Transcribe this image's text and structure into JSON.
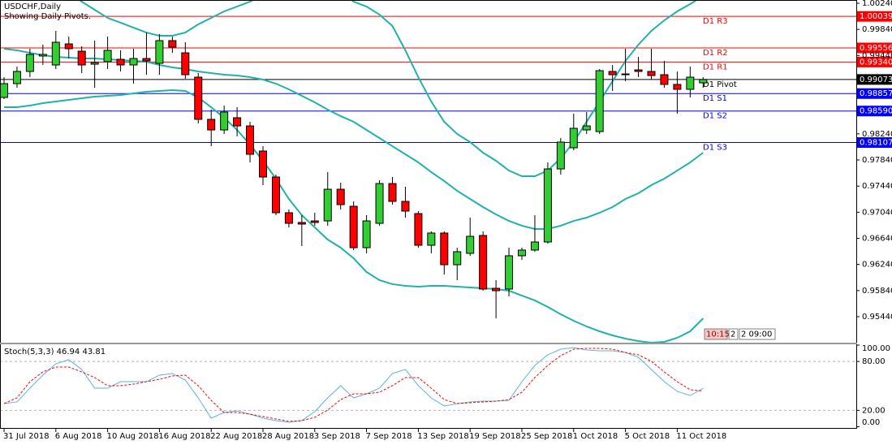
{
  "chart_data": [
    {
      "type": "candlestick",
      "title": "USDCHF,Daily",
      "subtitle": "Showing Daily Pivots.",
      "categories": [
        "31 Jul 2018",
        null,
        null,
        null,
        "6 Aug 2018",
        null,
        null,
        null,
        "10 Aug 2018",
        null,
        null,
        null,
        "16 Aug 2018",
        null,
        null,
        null,
        "22 Aug 2018",
        null,
        null,
        null,
        "28 Aug 2018",
        null,
        null,
        null,
        "3 Sep 2018",
        null,
        null,
        null,
        "7 Sep 2018",
        null,
        null,
        null,
        "13 Sep 2018",
        null,
        null,
        null,
        "19 Sep 2018",
        null,
        null,
        null,
        "25 Sep 2018",
        null,
        null,
        null,
        "1 Oct 2018",
        null,
        null,
        null,
        "5 Oct 2018",
        null,
        null,
        null,
        "11 Oct 2018",
        null,
        null
      ],
      "open": [
        0.98798,
        0.99009,
        0.99196,
        0.99432,
        0.99295,
        0.99618,
        0.99506,
        0.99307,
        0.99345,
        0.99382,
        0.99295,
        0.99394,
        0.9932,
        0.99668,
        0.99481,
        0.99108,
        0.98462,
        0.983,
        0.98487,
        0.98362,
        0.97977,
        0.97579,
        0.97032,
        0.96883,
        0.96907,
        0.96907,
        0.97392,
        0.97131,
        0.96497,
        0.9687,
        0.97479,
        0.97206,
        0.97019,
        0.96534,
        0.96721,
        0.96236,
        0.9641,
        0.96684,
        0.95875,
        0.95863,
        0.96373,
        0.9646,
        0.96584,
        0.97703,
        0.98027,
        0.983,
        0.98275,
        0.99196,
        0.99146,
        0.9922,
        0.99196,
        0.99146,
        0.98997,
        0.98922,
        0.99021
      ],
      "high": [
        0.99108,
        0.9927,
        0.99544,
        0.99606,
        0.99817,
        0.9973,
        0.99581,
        0.99668,
        0.9973,
        0.99519,
        0.99544,
        0.99792,
        0.99768,
        0.9973,
        0.99643,
        0.99171,
        0.98611,
        0.98673,
        0.98648,
        0.98425,
        0.98051,
        0.97616,
        0.97082,
        0.96995,
        0.97032,
        0.97654,
        0.97492,
        0.97206,
        0.96995,
        0.97529,
        0.97579,
        0.9743,
        0.97057,
        0.96746,
        0.96746,
        0.96497,
        0.96957,
        0.96746,
        0.96,
        0.96497,
        0.96497,
        0.96995,
        0.97803,
        0.98176,
        0.98549,
        0.98574,
        0.99233,
        0.99295,
        0.99544,
        0.99419,
        0.99544,
        0.99357,
        0.99196,
        0.9927,
        0.99108
      ],
      "low": [
        0.98773,
        0.98947,
        0.99108,
        0.99295,
        0.99233,
        0.99394,
        0.99171,
        0.98947,
        0.99233,
        0.99196,
        0.99009,
        0.99146,
        0.99146,
        0.99481,
        0.99084,
        0.984,
        0.98051,
        0.98238,
        0.98201,
        0.97803,
        0.97455,
        0.96995,
        0.96808,
        0.96522,
        0.96833,
        0.96833,
        0.97082,
        0.9646,
        0.9641,
        0.96833,
        0.97156,
        0.96957,
        0.96497,
        0.9641,
        0.96087,
        0.96,
        0.96373,
        0.95838,
        0.95415,
        0.95751,
        0.96311,
        0.96435,
        0.96559,
        0.97616,
        0.97989,
        0.98238,
        0.98238,
        0.98897,
        0.99046,
        0.99108,
        0.99071,
        0.98947,
        0.98549,
        0.98798,
        0.98947
      ],
      "close": [
        0.99009,
        0.99196,
        0.99457,
        0.99457,
        0.99643,
        0.99544,
        0.99295,
        0.99332,
        0.99519,
        0.99295,
        0.99394,
        0.99357,
        0.99668,
        0.99569,
        0.99146,
        0.98462,
        0.983,
        0.98574,
        0.98362,
        0.97927,
        0.97579,
        0.97032,
        0.9687,
        0.96858,
        0.96883,
        0.97392,
        0.97156,
        0.96497,
        0.96907,
        0.97479,
        0.97206,
        0.97057,
        0.96534,
        0.96721,
        0.96236,
        0.96435,
        0.96671,
        0.95863,
        0.95838,
        0.96373,
        0.9646,
        0.96584,
        0.97703,
        0.98114,
        0.98325,
        0.98362,
        0.99208,
        0.99146,
        0.99158,
        0.99196,
        0.99133,
        0.98997,
        0.98922,
        0.99108,
        0.99073
      ],
      "up_color": "#32cd32",
      "down_color": "#ff0000",
      "bands": {
        "color": "#20b2aa",
        "upper": [
          1.01036,
          1.00912,
          1.00787,
          1.00663,
          1.00538,
          1.00414,
          1.00265,
          1.00141,
          1.00016,
          0.99942,
          0.99867,
          0.99792,
          0.99743,
          0.99743,
          0.99792,
          0.99917,
          1.00016,
          1.00116,
          1.0019,
          1.00265,
          1.00364,
          1.00464,
          1.00563,
          1.00663,
          1.00663,
          1.00588,
          1.00414,
          1.00265,
          1.0019,
          1.00066,
          0.99892,
          0.99519,
          0.99108,
          0.98735,
          0.98425,
          0.98238,
          0.98114,
          0.97952,
          0.97828,
          0.97678,
          0.97591,
          0.97591,
          0.97678,
          0.97865,
          0.98114,
          0.98425,
          0.98735,
          0.99046,
          0.99357,
          0.99606,
          0.99817,
          0.99979,
          1.00116,
          1.00228,
          1.00352
        ],
        "middle": [
          0.99544,
          0.99519,
          0.99481,
          0.99444,
          0.99419,
          0.99407,
          0.99394,
          0.99394,
          0.99382,
          0.9937,
          0.99357,
          0.99345,
          0.99295,
          0.99258,
          0.99233,
          0.99196,
          0.99171,
          0.99146,
          0.99133,
          0.99108,
          0.99071,
          0.99009,
          0.98922,
          0.98822,
          0.98723,
          0.98611,
          0.98512,
          0.98425,
          0.983,
          0.98176,
          0.98051,
          0.97927,
          0.97803,
          0.97654,
          0.97517,
          0.97368,
          0.97243,
          0.97119,
          0.97007,
          0.96907,
          0.96833,
          0.96783,
          0.96783,
          0.96833,
          0.96907,
          0.96957,
          0.97032,
          0.97119,
          0.97243,
          0.9733,
          0.97455,
          0.97554,
          0.97678,
          0.97803,
          0.97952
        ],
        "lower": [
          0.98648,
          0.98648,
          0.98673,
          0.9871,
          0.98735,
          0.9876,
          0.98785,
          0.9881,
          0.98822,
          0.98835,
          0.9886,
          0.98885,
          0.98897,
          0.98909,
          0.98897,
          0.98798,
          0.98648,
          0.98487,
          0.983,
          0.98076,
          0.97828,
          0.97554,
          0.97243,
          0.96995,
          0.96808,
          0.96621,
          0.96497,
          0.96335,
          0.96124,
          0.96,
          0.95938,
          0.95913,
          0.959,
          0.95913,
          0.95913,
          0.959,
          0.95888,
          0.95875,
          0.95863,
          0.95838,
          0.95763,
          0.95689,
          0.95589,
          0.95477,
          0.95378,
          0.95291,
          0.95216,
          0.95154,
          0.95104,
          0.95067,
          0.95042,
          0.95055,
          0.95117,
          0.95216,
          0.95415
        ]
      },
      "levels": [
        {
          "name": "D1 R3",
          "value": 1.00039,
          "color": "#ff0000"
        },
        {
          "name": "D1 R2",
          "value": 0.99556,
          "color": "#ff0000"
        },
        {
          "name": "D1 R1",
          "value": 0.9934,
          "value_label": "0.99340",
          "color": "#ff0000"
        },
        {
          "name": "D1 Pivot",
          "value": 0.99073,
          "color": "#000000"
        },
        {
          "name": "D1 S1",
          "value": 0.98857,
          "color": "#0000ff"
        },
        {
          "name": "D1 S2",
          "value": 0.9859,
          "value_label": "0.98590",
          "color": "#0000ff"
        },
        {
          "name": "D1 S3",
          "value": 0.98107,
          "color": "#0000ff"
        }
      ],
      "ylim": [
        0.95042,
        1.0029
      ],
      "yticks": [
        {
          "value": 1.0024,
          "label": "1.00240"
        },
        {
          "value": 0.9984,
          "label": "0.99840"
        },
        {
          "value": 0.9944,
          "label": "0.99440"
        },
        {
          "value": 0.9824,
          "label": "0.98240"
        },
        {
          "value": 0.9784,
          "label": "0.97840"
        },
        {
          "value": 0.9744,
          "label": "0.97440"
        },
        {
          "value": 0.9704,
          "label": "0.97040"
        },
        {
          "value": 0.9664,
          "label": "0.96640"
        },
        {
          "value": 0.9624,
          "label": "0.96240"
        },
        {
          "value": 0.9584,
          "label": "0.95840"
        },
        {
          "value": 0.9544,
          "label": "0.95440"
        }
      ],
      "time_labels": [
        "10:15",
        "2",
        "2 09:00"
      ]
    },
    {
      "type": "line",
      "title": "Stoch(5,3,3) 46.94 43.81",
      "series": [
        {
          "color": "#5ab4dc",
          "values": [
            28.4,
            30.4,
            47.3,
            63.2,
            77.1,
            82.1,
            70.2,
            47.3,
            47.3,
            55.2,
            55.2,
            55.2,
            63.2,
            65.2,
            57.2,
            35.3,
            10.5,
            17.4,
            19.4,
            15.4,
            10.5,
            7.5,
            5.5,
            7.5,
            18.4,
            35.3,
            50.3,
            35.3,
            40.3,
            47.3,
            65.2,
            70.2,
            50.3,
            35.3,
            25.4,
            28.4,
            30.4,
            31.3,
            31.3,
            32.3,
            55.2,
            75.1,
            88.1,
            95.0,
            97.0,
            94.0,
            93.0,
            93.0,
            91.0,
            85.1,
            70.2,
            55.2,
            43.3,
            38.3,
            46.94
          ]
        },
        {
          "color": "#ff0000",
          "dash": true,
          "values": [
            28.4,
            35.3,
            55.2,
            67.2,
            73.1,
            73.1,
            67.2,
            60.2,
            50.3,
            50.3,
            52.2,
            55.2,
            58.2,
            62.2,
            63.2,
            50.3,
            32.3,
            17.4,
            17.4,
            15.4,
            12.4,
            9.5,
            6.5,
            7.5,
            11.4,
            20.4,
            33.3,
            40.3,
            40.3,
            42.3,
            50.3,
            60.2,
            60.2,
            47.3,
            33.3,
            28.4,
            29.4,
            30.4,
            31.3,
            33.3,
            42.3,
            60.2,
            75.1,
            87.1,
            95.0,
            96.0,
            96.0,
            95.0,
            91.0,
            88.1,
            80.1,
            67.2,
            55.2,
            45.3,
            43.81
          ]
        }
      ],
      "ylim": [
        -1.5,
        101
      ],
      "yticks": [
        {
          "value": 100,
          "label": "100.00"
        },
        {
          "value": 80,
          "label": "80.00"
        },
        {
          "value": 20,
          "label": "20.00"
        },
        {
          "value": 0,
          "label": "0.00"
        }
      ],
      "grid": true
    }
  ]
}
